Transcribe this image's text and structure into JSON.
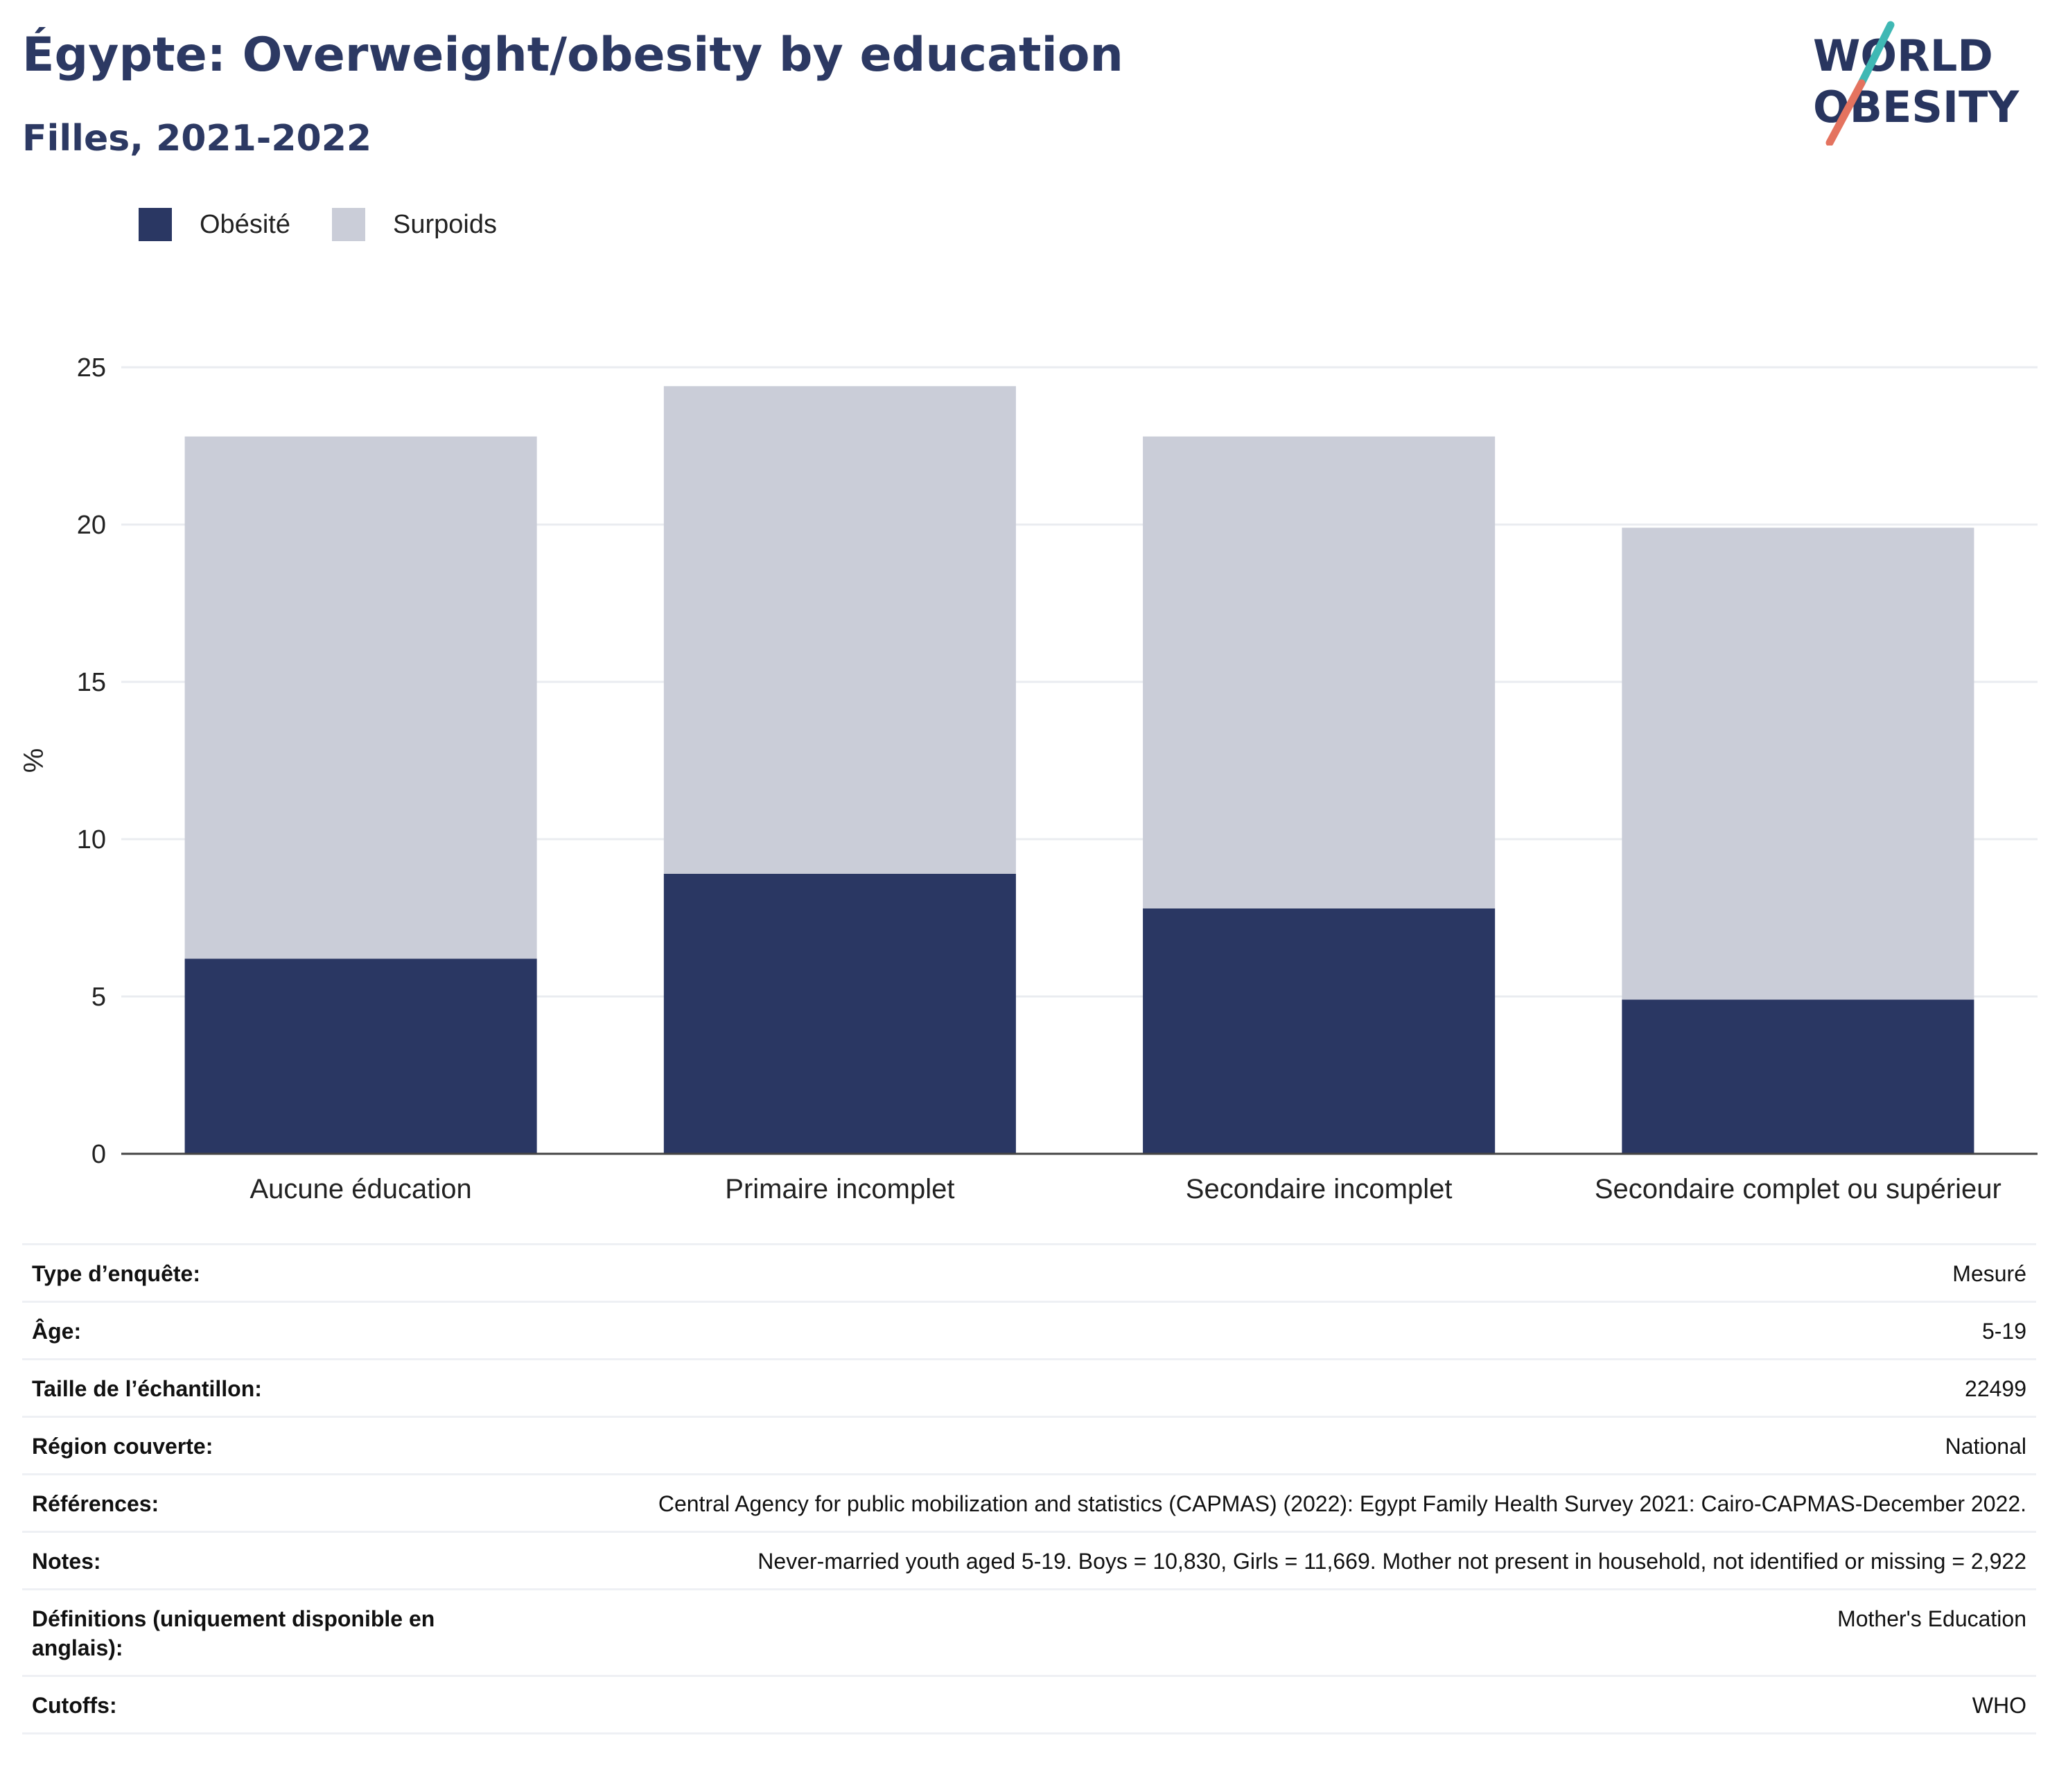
{
  "header": {
    "title": "Égypte: Overweight/obesity by education",
    "subtitle": "Filles, 2021-2022"
  },
  "logo": {
    "line1": "WORLD",
    "line2": "OBESITY",
    "colors": {
      "text": "#28355f",
      "teal": "#3fb8b4",
      "coral": "#e4735f"
    }
  },
  "legend": [
    {
      "label": "Obésité",
      "color": "#2a3763"
    },
    {
      "label": "Surpoids",
      "color": "#cacdd8"
    }
  ],
  "chart_data": {
    "type": "bar",
    "stacked": true,
    "categories": [
      "Aucune éducation",
      "Primaire incomplet",
      "Secondaire incomplet",
      "Secondaire complet ou supérieur"
    ],
    "series": [
      {
        "name": "Obésité",
        "values": [
          6.2,
          8.9,
          7.8,
          4.9
        ],
        "color": "#2a3763"
      },
      {
        "name": "Surpoids",
        "values": [
          16.6,
          15.5,
          15.0,
          15.0
        ],
        "color": "#cacdd8"
      }
    ],
    "ylabel": "%",
    "ylim": [
      0,
      25
    ],
    "yticks": [
      0,
      5,
      10,
      15,
      20,
      25
    ],
    "grid": true,
    "legend_position": "top-left"
  },
  "info": [
    {
      "label": "Type d’enquête:",
      "value": "Mesuré"
    },
    {
      "label": "Âge:",
      "value": "5-19"
    },
    {
      "label": "Taille de l’échantillon:",
      "value": "22499"
    },
    {
      "label": "Région couverte:",
      "value": "National"
    },
    {
      "label": "Références:",
      "value": "Central Agency for public mobilization and statistics (CAPMAS) (2022): Egypt Family Health Survey 2021: Cairo-CAPMAS-December 2022."
    },
    {
      "label": "Notes:",
      "value": "Never-married youth aged 5-19. Boys = 10,830, Girls = 11,669. Mother not present in household, not identified or missing = 2,922"
    },
    {
      "label": "Définitions (uniquement disponible en anglais):",
      "value": "Mother's Education"
    },
    {
      "label": "Cutoffs:",
      "value": "WHO"
    }
  ]
}
